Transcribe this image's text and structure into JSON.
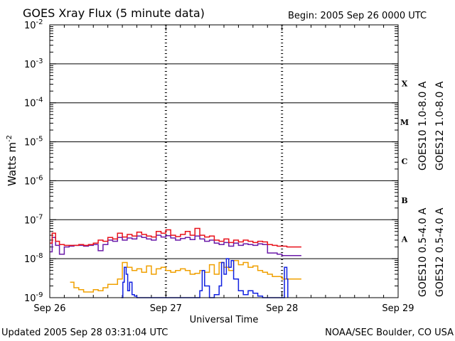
{
  "header": {
    "title": "GOES Xray Flux (5 minute data)",
    "begin_label": "Begin:  2005 Sep 26 0000 UTC"
  },
  "footer": {
    "updated": "Updated 2005 Sep 28 03:31:04 UTC",
    "credit": "NOAA/SEC Boulder, CO USA"
  },
  "colors": {
    "goes10_long": "#6a1aa8",
    "goes12_long": "#e8101a",
    "goes10_short": "#f0a000",
    "goes12_short": "#1020e0"
  },
  "chart_data": {
    "type": "line",
    "title": "GOES Xray Flux (5 minute data)",
    "xlabel": "Universal Time",
    "ylabel": "Watts m",
    "ylabel_sup": "-2",
    "y_scale": "log",
    "ylim": [
      1e-09,
      0.01
    ],
    "x_unit": "hours since 2005 Sep 26 0000 UTC",
    "xlim": [
      0,
      72
    ],
    "x_ticks": [
      {
        "value": 0,
        "label": "Sep 26"
      },
      {
        "value": 24,
        "label": "Sep 27"
      },
      {
        "value": 48,
        "label": "Sep 28"
      },
      {
        "value": 72,
        "label": "Sep 29"
      }
    ],
    "y_ticks": [
      {
        "exp": -2,
        "label": "10",
        "sup": "-2"
      },
      {
        "exp": -3,
        "label": "10",
        "sup": "-3"
      },
      {
        "exp": -4,
        "label": "10",
        "sup": "-4"
      },
      {
        "exp": -5,
        "label": "10",
        "sup": "-5"
      },
      {
        "exp": -6,
        "label": "10",
        "sup": "-6"
      },
      {
        "exp": -7,
        "label": "10",
        "sup": "-7"
      },
      {
        "exp": -8,
        "label": "10",
        "sup": "-8"
      },
      {
        "exp": -9,
        "label": "10",
        "sup": "-9"
      }
    ],
    "flare_classes": [
      {
        "label": "X",
        "exp": -3.5
      },
      {
        "label": "M",
        "exp": -4.5
      },
      {
        "label": "C",
        "exp": -5.5
      },
      {
        "label": "B",
        "exp": -6.5
      },
      {
        "label": "A",
        "exp": -7.5
      }
    ],
    "grid": "horizontal decade lines",
    "legend_right": [
      {
        "label": "GOES10 1.0-8.0 A",
        "color": "#6a1aa8"
      },
      {
        "label": "GOES12 1.0-8.0 A",
        "color": "#e8101a"
      }
    ],
    "legend_right_bottom": [
      {
        "label": "GOES10 0.5-4.0 A",
        "color": "#f0a000"
      },
      {
        "label": "GOES12 0.5-4.0 A",
        "color": "#1020e0"
      }
    ],
    "series": [
      {
        "name": "GOES10 1.0-8.0 A",
        "color": "#6a1aa8",
        "x": [
          0,
          0.5,
          1.2,
          2,
          3,
          4,
          5,
          6,
          7,
          8,
          9,
          10,
          11,
          12,
          13,
          14,
          15,
          16,
          17,
          18,
          19,
          20,
          21,
          22,
          23,
          24,
          25,
          26,
          27,
          28,
          29,
          30,
          31,
          32,
          33,
          34,
          35,
          36,
          37,
          38,
          39,
          40,
          41,
          42,
          43,
          44,
          45,
          46,
          47,
          48,
          49,
          50,
          51,
          52
        ],
        "y": [
          1.5e-08,
          3.5e-08,
          2.2e-08,
          1.3e-08,
          2e-08,
          2.1e-08,
          2.2e-08,
          2.2e-08,
          2.1e-08,
          2.2e-08,
          2.3e-08,
          1.6e-08,
          2.3e-08,
          3e-08,
          2.8e-08,
          3.5e-08,
          3e-08,
          3.4e-08,
          3.2e-08,
          3.8e-08,
          3.5e-08,
          3.2e-08,
          3e-08,
          4e-08,
          3.6e-08,
          3.9e-08,
          3.4e-08,
          3e-08,
          3.3e-08,
          3.5e-08,
          3.1e-08,
          3.8e-08,
          3.2e-08,
          2.8e-08,
          3e-08,
          2.5e-08,
          2.3e-08,
          2.6e-08,
          2.1e-08,
          2.5e-08,
          2.2e-08,
          2.4e-08,
          2.3e-08,
          2.2e-08,
          2.4e-08,
          2.3e-08,
          1.4e-08,
          1.4e-08,
          1.3e-08,
          1.2e-08,
          1.2e-08,
          1.2e-08,
          1.2e-08,
          1.2e-08
        ]
      },
      {
        "name": "GOES12 1.0-8.0 A",
        "color": "#e8101a",
        "x": [
          0,
          0.5,
          1.2,
          2,
          3,
          4,
          5,
          6,
          7,
          8,
          9,
          10,
          11,
          12,
          13,
          14,
          15,
          16,
          17,
          18,
          19,
          20,
          21,
          22,
          23,
          24,
          25,
          26,
          27,
          28,
          29,
          30,
          31,
          32,
          33,
          34,
          35,
          36,
          37,
          38,
          39,
          40,
          41,
          42,
          43,
          44,
          45,
          46,
          47,
          48,
          49,
          50,
          51,
          52
        ],
        "y": [
          2.5e-08,
          4.5e-08,
          2.8e-08,
          2.3e-08,
          2.2e-08,
          2.2e-08,
          2.2e-08,
          2.3e-08,
          2.2e-08,
          2.3e-08,
          2.5e-08,
          3e-08,
          2.8e-08,
          3.5e-08,
          3.2e-08,
          4.5e-08,
          3.6e-08,
          4.2e-08,
          3.8e-08,
          4.8e-08,
          4.2e-08,
          3.8e-08,
          3.6e-08,
          5e-08,
          4.5e-08,
          5.5e-08,
          4e-08,
          3.7e-08,
          4.2e-08,
          5e-08,
          4e-08,
          6e-08,
          4e-08,
          3.6e-08,
          3.8e-08,
          3e-08,
          2.8e-08,
          3.2e-08,
          2.6e-08,
          3e-08,
          2.7e-08,
          3e-08,
          2.8e-08,
          2.6e-08,
          2.8e-08,
          2.7e-08,
          2.3e-08,
          2.2e-08,
          2.1e-08,
          2.1e-08,
          2e-08,
          2e-08,
          2e-08,
          2e-08
        ]
      },
      {
        "name": "GOES10 0.5-4.0 A",
        "color": "#f0a000",
        "x": [
          4.2,
          5,
          6,
          7,
          8,
          9,
          10,
          11,
          12,
          14,
          15,
          16,
          17,
          18,
          19,
          20,
          21,
          22,
          23,
          24,
          25,
          26,
          27,
          28,
          29,
          30,
          31,
          32,
          33,
          34,
          35,
          36,
          37,
          38,
          39,
          40,
          41,
          42,
          43,
          44,
          45,
          46,
          47,
          48,
          49,
          50,
          51,
          52
        ],
        "y": [
          2.5e-09,
          1.8e-09,
          1.6e-09,
          1.4e-09,
          1.4e-09,
          1.6e-09,
          1.5e-09,
          1.8e-09,
          2.2e-09,
          3e-09,
          8e-09,
          6e-09,
          5e-09,
          5.5e-09,
          4.5e-09,
          6.5e-09,
          4e-09,
          5.5e-09,
          6e-09,
          5e-09,
          4.5e-09,
          5e-09,
          5.5e-09,
          5e-09,
          4e-09,
          4.2e-09,
          5e-09,
          4.5e-09,
          7e-09,
          4e-09,
          8e-09,
          6e-09,
          5e-09,
          9e-09,
          7e-09,
          8e-09,
          6e-09,
          6.5e-09,
          5e-09,
          4.5e-09,
          4e-09,
          3.5e-09,
          3.5e-09,
          3e-09,
          3e-09,
          3e-09,
          3e-09,
          3e-09
        ]
      },
      {
        "name": "GOES12 0.5-4.0 A",
        "color": "#1020e0",
        "x": [
          14.8,
          15.1,
          15.4,
          15.8,
          16.1,
          16.5,
          17,
          17.5,
          18,
          19,
          20,
          21,
          22,
          23,
          24,
          25,
          26,
          27,
          28,
          29,
          30,
          31,
          31.5,
          32,
          33,
          34,
          35,
          35.5,
          36,
          36.5,
          37,
          37.5,
          38,
          39,
          40,
          41,
          42,
          43,
          44,
          45,
          46,
          47,
          48,
          48.5,
          49,
          49.2
        ],
        "y": [
          1e-09,
          2.5e-09,
          6e-09,
          4e-09,
          1.5e-09,
          2.5e-09,
          1.2e-09,
          1.1e-09,
          1e-09,
          1e-09,
          1e-09,
          1e-09,
          1e-09,
          1e-09,
          1e-09,
          1e-09,
          1e-09,
          1e-09,
          1e-09,
          1e-09,
          1e-09,
          1.5e-09,
          5e-09,
          2e-09,
          1e-09,
          1.2e-09,
          2e-09,
          8e-09,
          4e-09,
          1e-08,
          6e-09,
          9e-09,
          3e-09,
          1.5e-09,
          1.2e-09,
          1.5e-09,
          1.3e-09,
          1.1e-09,
          1e-09,
          1e-09,
          1e-09,
          1e-09,
          1e-09,
          6e-09,
          3e-09,
          1e-09
        ]
      }
    ]
  }
}
